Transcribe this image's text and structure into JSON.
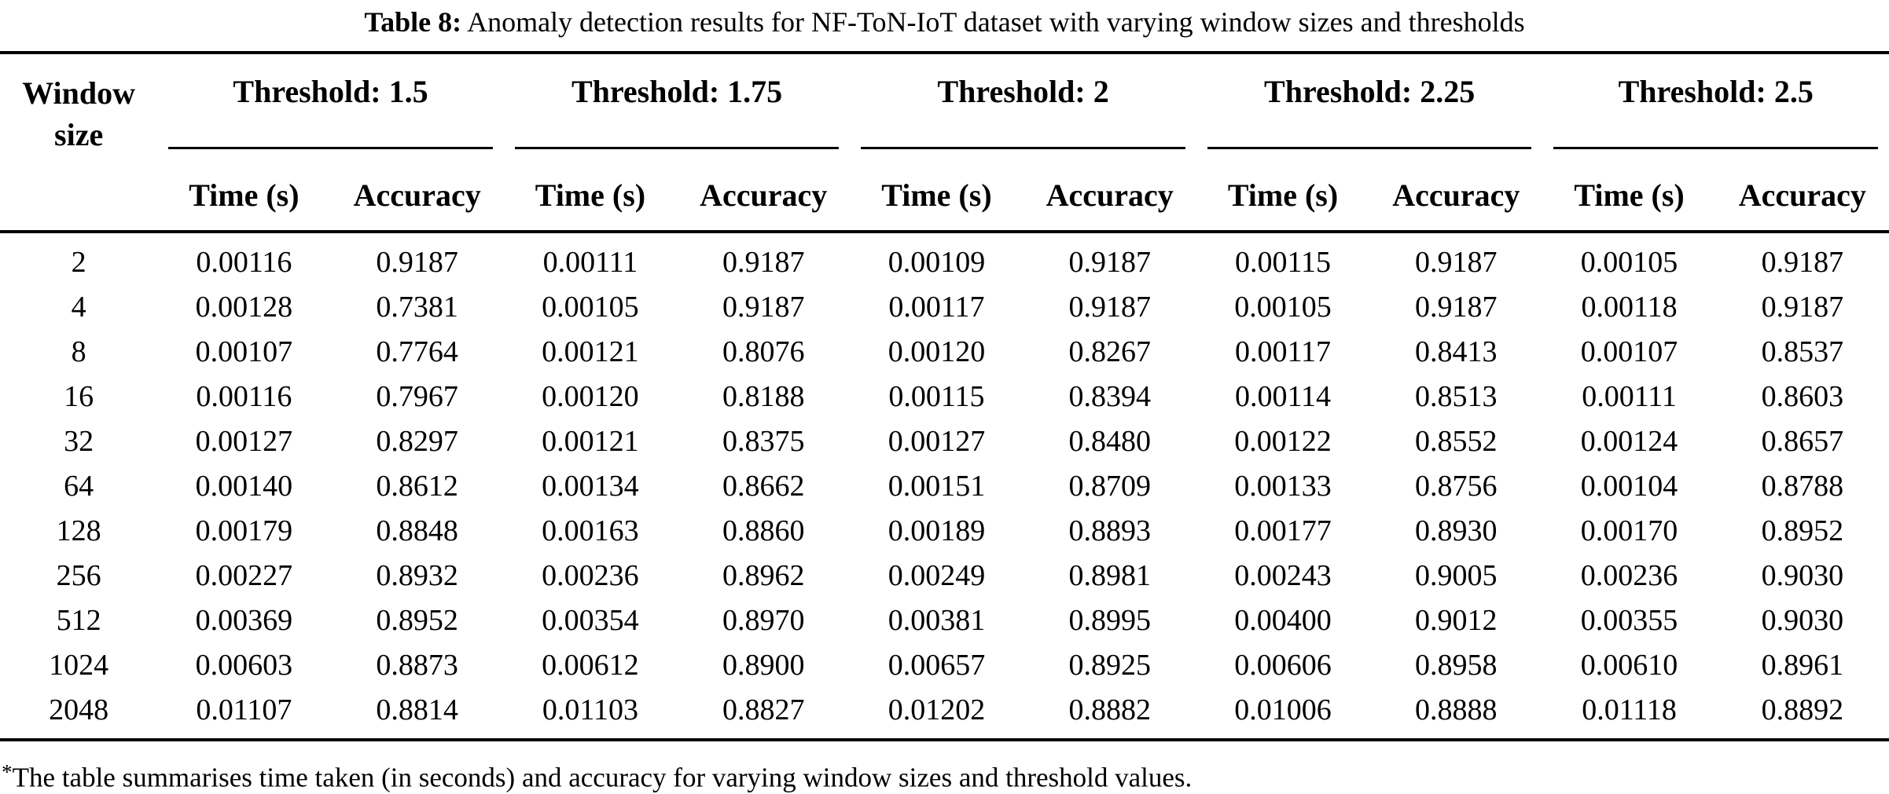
{
  "title": {
    "label": "Table 8:",
    "text": "Anomaly detection results for NF-ToN-IoT dataset with varying window sizes and thresholds"
  },
  "table": {
    "row_header": {
      "line1": "Window",
      "line2": "size"
    },
    "groups": [
      {
        "label": "Threshold: 1.5"
      },
      {
        "label": "Threshold: 1.75"
      },
      {
        "label": "Threshold: 2"
      },
      {
        "label": "Threshold: 2.25"
      },
      {
        "label": "Threshold: 2.5"
      }
    ],
    "subheaders": {
      "time": "Time (s)",
      "accuracy": "Accuracy"
    },
    "rows": [
      {
        "window": "2",
        "values": [
          [
            "0.00116",
            "0.9187"
          ],
          [
            "0.00111",
            "0.9187"
          ],
          [
            "0.00109",
            "0.9187"
          ],
          [
            "0.00115",
            "0.9187"
          ],
          [
            "0.00105",
            "0.9187"
          ]
        ]
      },
      {
        "window": "4",
        "values": [
          [
            "0.00128",
            "0.7381"
          ],
          [
            "0.00105",
            "0.9187"
          ],
          [
            "0.00117",
            "0.9187"
          ],
          [
            "0.00105",
            "0.9187"
          ],
          [
            "0.00118",
            "0.9187"
          ]
        ]
      },
      {
        "window": "8",
        "values": [
          [
            "0.00107",
            "0.7764"
          ],
          [
            "0.00121",
            "0.8076"
          ],
          [
            "0.00120",
            "0.8267"
          ],
          [
            "0.00117",
            "0.8413"
          ],
          [
            "0.00107",
            "0.8537"
          ]
        ]
      },
      {
        "window": "16",
        "values": [
          [
            "0.00116",
            "0.7967"
          ],
          [
            "0.00120",
            "0.8188"
          ],
          [
            "0.00115",
            "0.8394"
          ],
          [
            "0.00114",
            "0.8513"
          ],
          [
            "0.00111",
            "0.8603"
          ]
        ]
      },
      {
        "window": "32",
        "values": [
          [
            "0.00127",
            "0.8297"
          ],
          [
            "0.00121",
            "0.8375"
          ],
          [
            "0.00127",
            "0.8480"
          ],
          [
            "0.00122",
            "0.8552"
          ],
          [
            "0.00124",
            "0.8657"
          ]
        ]
      },
      {
        "window": "64",
        "values": [
          [
            "0.00140",
            "0.8612"
          ],
          [
            "0.00134",
            "0.8662"
          ],
          [
            "0.00151",
            "0.8709"
          ],
          [
            "0.00133",
            "0.8756"
          ],
          [
            "0.00104",
            "0.8788"
          ]
        ]
      },
      {
        "window": "128",
        "values": [
          [
            "0.00179",
            "0.8848"
          ],
          [
            "0.00163",
            "0.8860"
          ],
          [
            "0.00189",
            "0.8893"
          ],
          [
            "0.00177",
            "0.8930"
          ],
          [
            "0.00170",
            "0.8952"
          ]
        ]
      },
      {
        "window": "256",
        "values": [
          [
            "0.00227",
            "0.8932"
          ],
          [
            "0.00236",
            "0.8962"
          ],
          [
            "0.00249",
            "0.8981"
          ],
          [
            "0.00243",
            "0.9005"
          ],
          [
            "0.00236",
            "0.9030"
          ]
        ]
      },
      {
        "window": "512",
        "values": [
          [
            "0.00369",
            "0.8952"
          ],
          [
            "0.00354",
            "0.8970"
          ],
          [
            "0.00381",
            "0.8995"
          ],
          [
            "0.00400",
            "0.9012"
          ],
          [
            "0.00355",
            "0.9030"
          ]
        ]
      },
      {
        "window": "1024",
        "values": [
          [
            "0.00603",
            "0.8873"
          ],
          [
            "0.00612",
            "0.8900"
          ],
          [
            "0.00657",
            "0.8925"
          ],
          [
            "0.00606",
            "0.8958"
          ],
          [
            "0.00610",
            "0.8961"
          ]
        ]
      },
      {
        "window": "2048",
        "values": [
          [
            "0.01107",
            "0.8814"
          ],
          [
            "0.01103",
            "0.8827"
          ],
          [
            "0.01202",
            "0.8882"
          ],
          [
            "0.01006",
            "0.8888"
          ],
          [
            "0.01118",
            "0.8892"
          ]
        ]
      }
    ]
  },
  "footnote": {
    "marker": "*",
    "text": "The table summarises time taken (in seconds) and accuracy for varying window sizes and threshold values."
  },
  "colors": {
    "text": "#000000",
    "background": "#ffffff",
    "rule": "#000000"
  }
}
